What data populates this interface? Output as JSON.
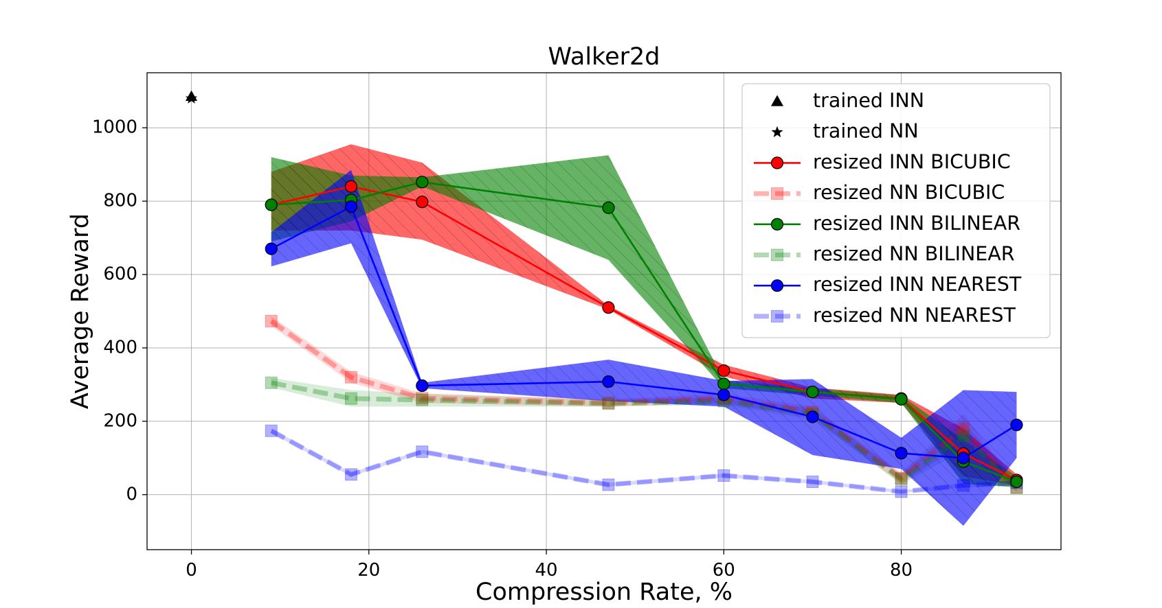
{
  "chart_data": {
    "type": "line",
    "title": "Walker2d",
    "xlabel": "Compression Rate, %",
    "ylabel": "Average Reward",
    "xlim": [
      -5,
      98
    ],
    "ylim": [
      -150,
      1150
    ],
    "xticks": [
      0,
      20,
      40,
      60,
      80
    ],
    "yticks": [
      0,
      200,
      400,
      600,
      800,
      1000
    ],
    "xtick_labels": [
      "0",
      "20",
      "40",
      "60",
      "80"
    ],
    "ytick_labels": [
      "0",
      "200",
      "400",
      "600",
      "800",
      "1000"
    ],
    "grid": true,
    "legend_position": "top-right",
    "x": [
      9,
      18,
      26,
      47,
      60,
      70,
      80,
      87,
      93
    ],
    "points": [
      {
        "name": "trained INN",
        "marker": "triangle",
        "color": "#000000",
        "x": 0,
        "y": 1085
      },
      {
        "name": "trained NN",
        "marker": "star",
        "color": "#000000",
        "x": 0,
        "y": 1080
      }
    ],
    "series": [
      {
        "name": "resized INN BICUBIC",
        "color": "#ff0000",
        "marker": "circle",
        "style": "solid",
        "faded": false,
        "values": [
          790,
          840,
          798,
          510,
          338,
          280,
          262,
          112,
          40
        ],
        "lower": [
          720,
          720,
          695,
          505,
          322,
          262,
          250,
          50,
          25
        ],
        "upper": [
          880,
          955,
          905,
          515,
          354,
          292,
          272,
          180,
          55
        ]
      },
      {
        "name": "resized NN BICUBIC",
        "color": "#ff0000",
        "marker": "square",
        "style": "dashed",
        "faded": true,
        "values": [
          473,
          320,
          263,
          250,
          262,
          225,
          45,
          180,
          20
        ],
        "lower": [
          460,
          305,
          250,
          240,
          250,
          210,
          30,
          140,
          10
        ],
        "upper": [
          486,
          335,
          276,
          260,
          275,
          240,
          60,
          220,
          30
        ]
      },
      {
        "name": "resized INN BILINEAR",
        "color": "#008000",
        "marker": "circle",
        "style": "solid",
        "faded": false,
        "values": [
          790,
          803,
          852,
          782,
          302,
          280,
          260,
          90,
          35
        ],
        "lower": [
          690,
          745,
          840,
          640,
          290,
          270,
          250,
          30,
          20
        ],
        "upper": [
          920,
          870,
          865,
          925,
          312,
          290,
          270,
          150,
          50
        ]
      },
      {
        "name": "resized NN BILINEAR",
        "color": "#008000",
        "marker": "square",
        "style": "dashed",
        "faded": true,
        "values": [
          305,
          262,
          258,
          248,
          255,
          220,
          42,
          160,
          18
        ],
        "lower": [
          292,
          240,
          240,
          240,
          245,
          205,
          28,
          120,
          8
        ],
        "upper": [
          318,
          285,
          275,
          258,
          265,
          235,
          56,
          200,
          28
        ]
      },
      {
        "name": "resized INN NEAREST",
        "color": "#0000ff",
        "marker": "circle",
        "style": "solid",
        "faded": false,
        "values": [
          670,
          785,
          297,
          308,
          272,
          212,
          113,
          100,
          190
        ],
        "lower": [
          622,
          685,
          290,
          255,
          240,
          108,
          70,
          -85,
          100
        ],
        "upper": [
          715,
          885,
          305,
          368,
          310,
          315,
          155,
          285,
          280
        ]
      },
      {
        "name": "resized NN NEAREST",
        "color": "#0000ff",
        "marker": "square",
        "style": "dashed",
        "faded": true,
        "values": [
          174,
          55,
          117,
          27,
          52,
          35,
          8,
          25,
          32
        ],
        "lower": [
          168,
          50,
          112,
          22,
          47,
          30,
          4,
          20,
          27
        ],
        "upper": [
          180,
          60,
          122,
          32,
          57,
          40,
          12,
          30,
          37
        ]
      }
    ]
  }
}
